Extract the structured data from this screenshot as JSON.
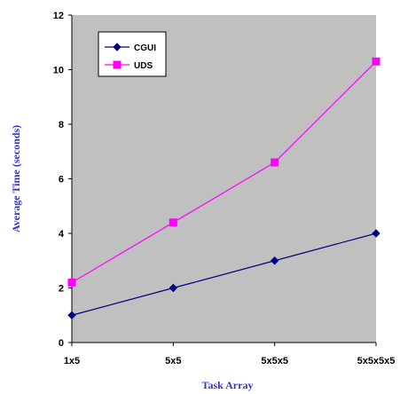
{
  "chart_data": {
    "type": "line",
    "categories": [
      "1x5",
      "5x5",
      "5x5x5",
      "5x5x5x5"
    ],
    "series": [
      {
        "name": "CGUI",
        "values": [
          1,
          2,
          3,
          4
        ],
        "color": "#000080",
        "marker": "diamond"
      },
      {
        "name": "UDS",
        "values": [
          2.2,
          4.4,
          6.6,
          10.3
        ],
        "color": "#ff00ff",
        "marker": "square"
      }
    ],
    "title": "",
    "xlabel": "Task Array",
    "ylabel": "Average Time (seconds)",
    "ylim": [
      0,
      12
    ],
    "yticks": [
      "0",
      "2",
      "4",
      "6",
      "8",
      "10",
      "12"
    ],
    "grid": false,
    "legend": "top-left",
    "plot_background": "#c0c0c0",
    "axis_title_color": "#3333cc"
  }
}
